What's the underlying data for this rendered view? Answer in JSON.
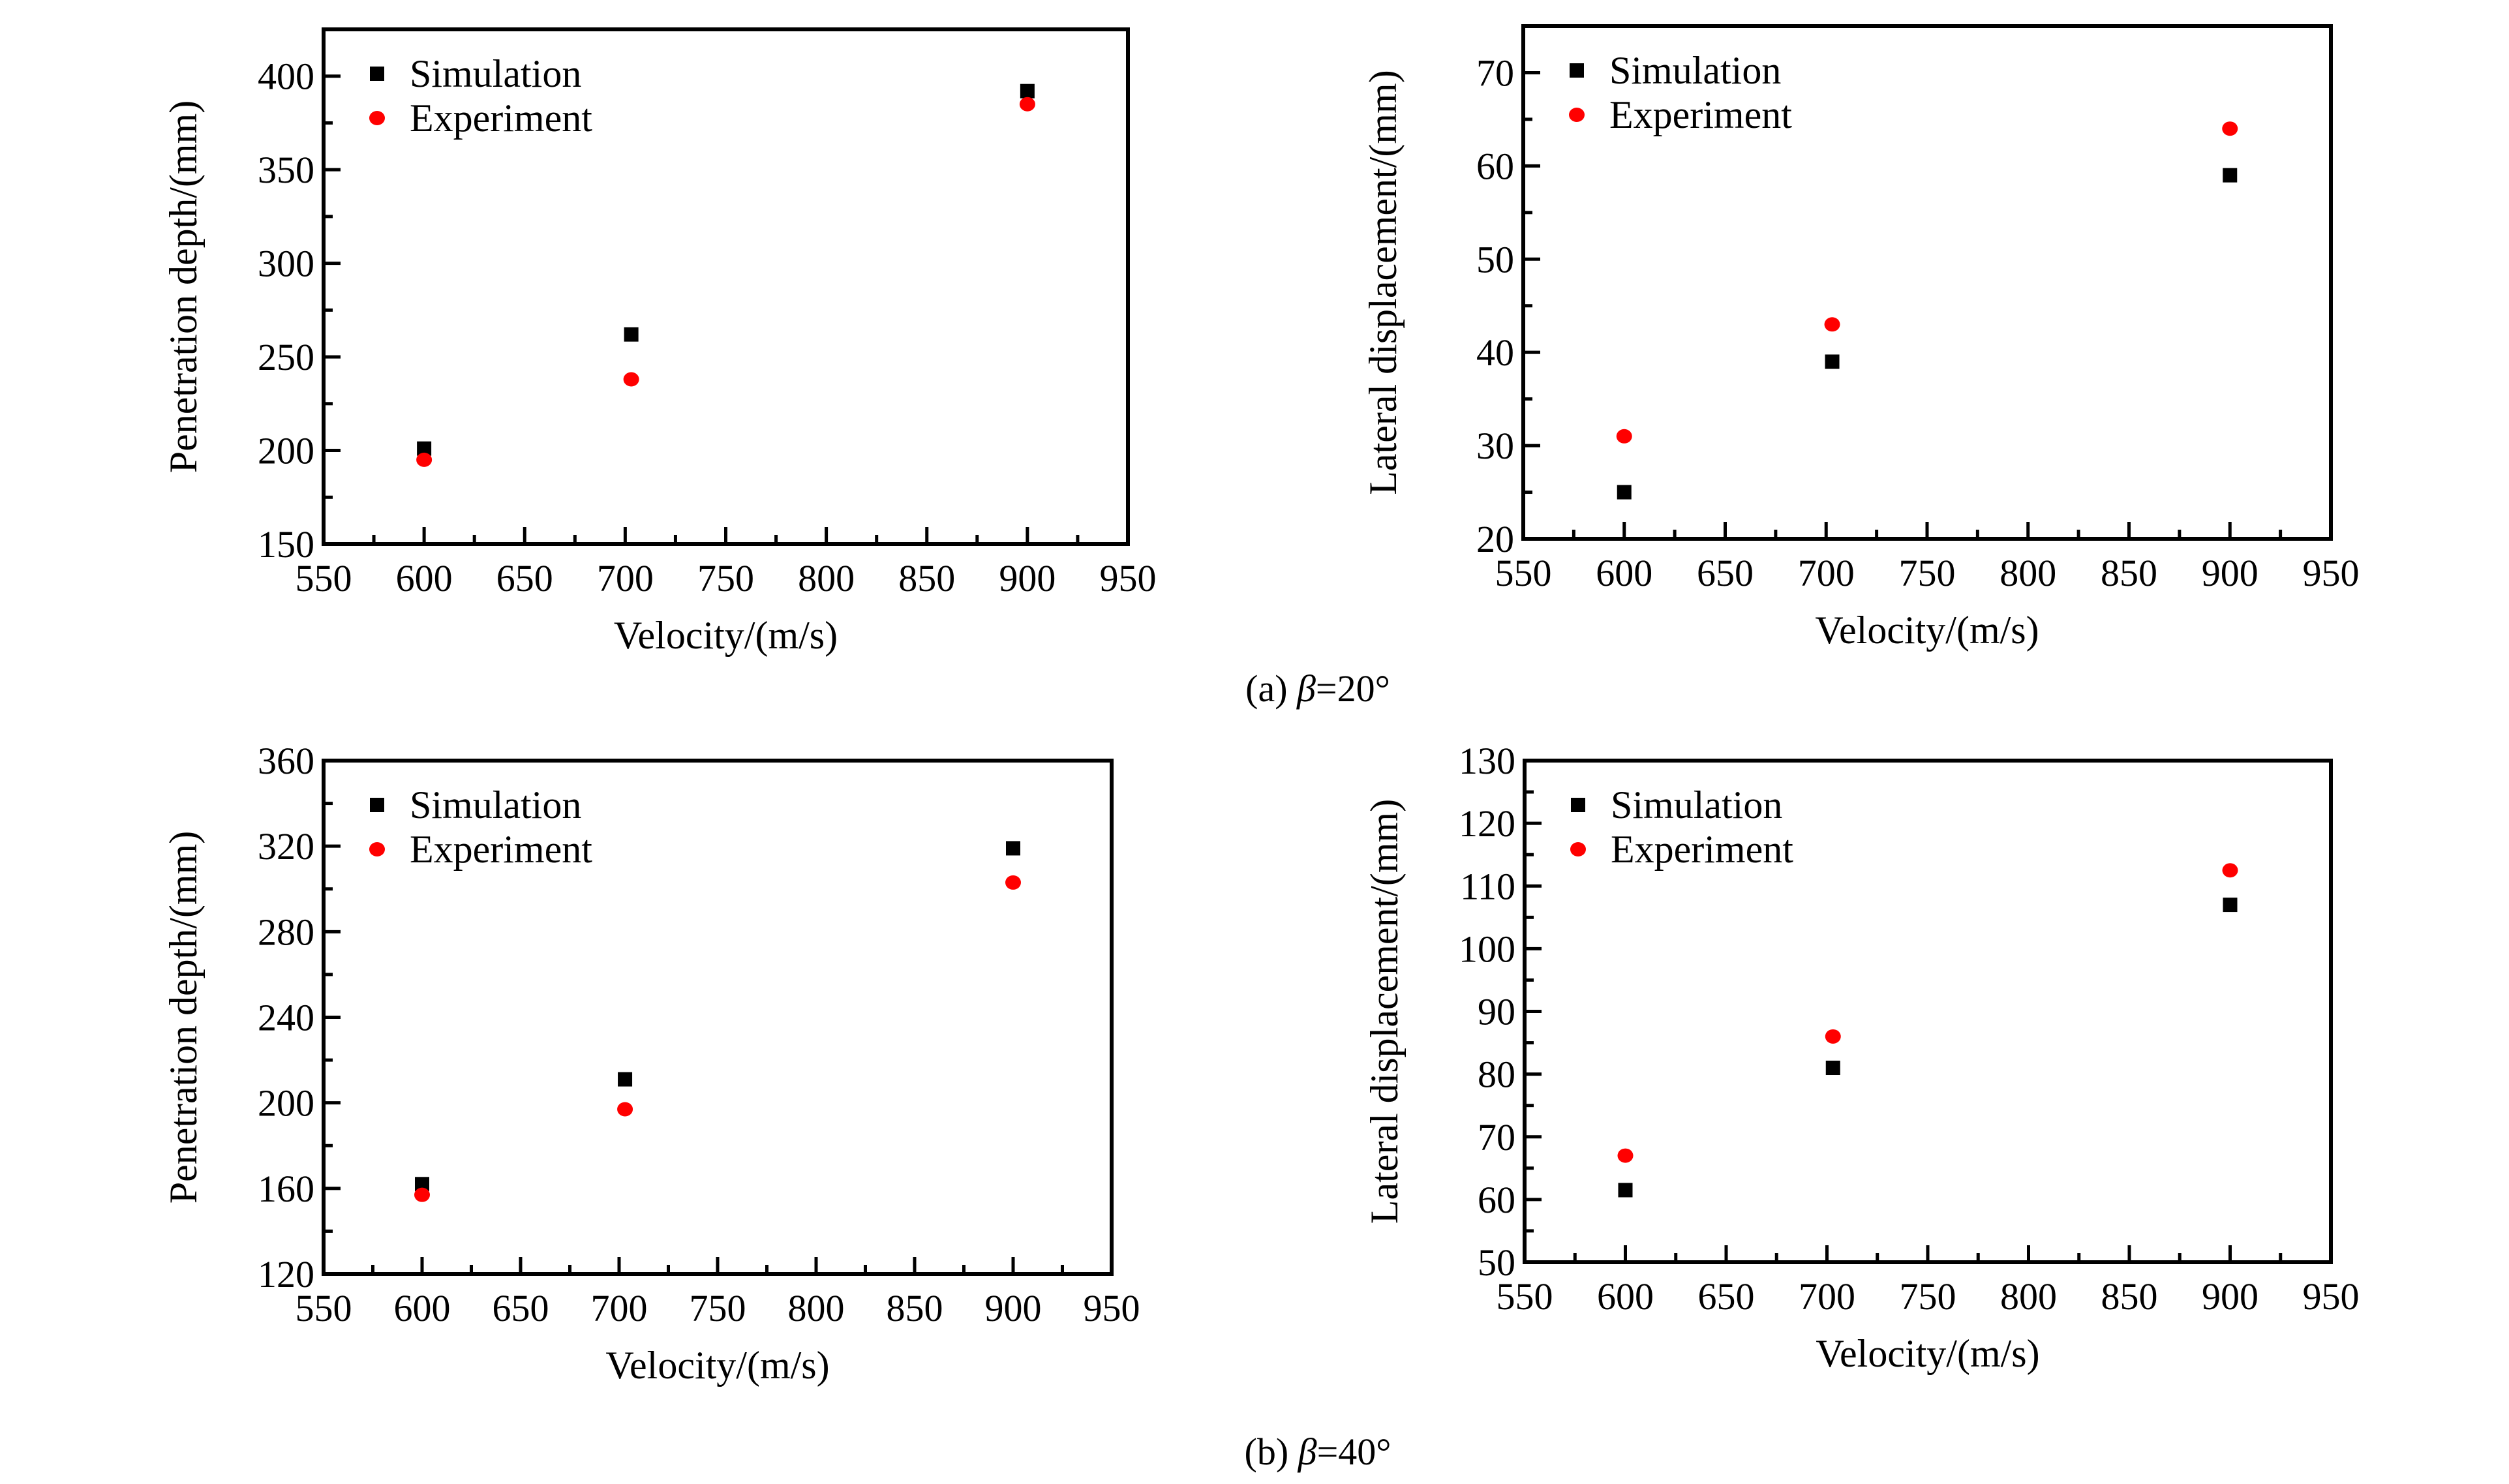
{
  "colors": {
    "simulation": "#000000",
    "experiment": "#ff0000",
    "axis": "#000000"
  },
  "captions": [
    {
      "prefix": "(a) ",
      "symbol": "β",
      "value": "=20°"
    },
    {
      "prefix": "(b) ",
      "symbol": "β",
      "value": "=40°"
    }
  ],
  "chart_data": [
    {
      "type": "scatter",
      "panel": "a-left",
      "xlabel": "Velocity/(m/s)",
      "ylabel": "Penetration depth/(mm)",
      "xlim": [
        550,
        950
      ],
      "ylim": [
        150,
        425
      ],
      "xticks": [
        550,
        600,
        650,
        700,
        750,
        800,
        850,
        900,
        950
      ],
      "yticks": [
        150,
        200,
        250,
        300,
        350,
        400
      ],
      "grid": false,
      "legend": "top-left",
      "series": [
        {
          "name": "Simulation",
          "marker": "square",
          "x": [
            600,
            703,
            900
          ],
          "y": [
            201,
            262,
            392
          ]
        },
        {
          "name": "Experiment",
          "marker": "circle",
          "x": [
            600,
            703,
            900
          ],
          "y": [
            195,
            238,
            385
          ]
        }
      ]
    },
    {
      "type": "scatter",
      "panel": "a-right",
      "xlabel": "Velocity/(m/s)",
      "ylabel": "Lateral displacement/(mm)",
      "xlim": [
        550,
        950
      ],
      "ylim": [
        20,
        75
      ],
      "xticks": [
        550,
        600,
        650,
        700,
        750,
        800,
        850,
        900,
        950
      ],
      "yticks": [
        20,
        30,
        40,
        50,
        60,
        70
      ],
      "grid": false,
      "legend": "top-left",
      "series": [
        {
          "name": "Simulation",
          "marker": "square",
          "x": [
            600,
            703,
            900
          ],
          "y": [
            25,
            39,
            59
          ]
        },
        {
          "name": "Experiment",
          "marker": "circle",
          "x": [
            600,
            703,
            900
          ],
          "y": [
            31,
            43,
            64
          ]
        }
      ]
    },
    {
      "type": "scatter",
      "panel": "b-left",
      "xlabel": "Velocity/(m/s)",
      "ylabel": "Penetration depth/(mm)",
      "xlim": [
        550,
        950
      ],
      "ylim": [
        120,
        360
      ],
      "xticks": [
        550,
        600,
        650,
        700,
        750,
        800,
        850,
        900,
        950
      ],
      "yticks": [
        120,
        160,
        200,
        240,
        280,
        320,
        360
      ],
      "grid": false,
      "legend": "top-left",
      "series": [
        {
          "name": "Simulation",
          "marker": "square",
          "x": [
            600,
            703,
            900
          ],
          "y": [
            162,
            211,
            319
          ]
        },
        {
          "name": "Experiment",
          "marker": "circle",
          "x": [
            600,
            703,
            900
          ],
          "y": [
            157,
            197,
            303
          ]
        }
      ]
    },
    {
      "type": "scatter",
      "panel": "b-right",
      "xlabel": "Velocity/(m/s)",
      "ylabel": "Lateral displacement/(mm)",
      "xlim": [
        550,
        950
      ],
      "ylim": [
        50,
        130
      ],
      "xticks": [
        550,
        600,
        650,
        700,
        750,
        800,
        850,
        900,
        950
      ],
      "yticks": [
        50,
        60,
        70,
        80,
        90,
        100,
        110,
        120,
        130
      ],
      "grid": false,
      "legend": "top-left",
      "series": [
        {
          "name": "Simulation",
          "marker": "square",
          "x": [
            600,
            703,
            900
          ],
          "y": [
            61.5,
            81,
            107
          ]
        },
        {
          "name": "Experiment",
          "marker": "circle",
          "x": [
            600,
            703,
            900
          ],
          "y": [
            67,
            86,
            112.5
          ]
        }
      ]
    }
  ]
}
